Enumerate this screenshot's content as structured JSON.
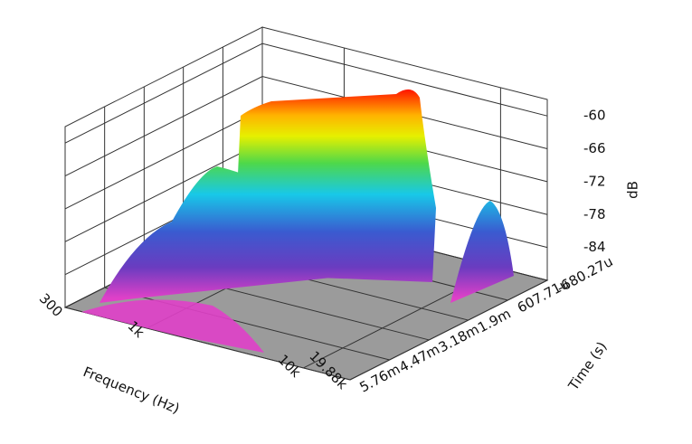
{
  "chart_data": {
    "type": "waterfall3d",
    "xlabel": "Frequency (Hz)",
    "ylabel": "Time (s)",
    "zlabel": "dB",
    "xscale": "log",
    "xlim": [
      300,
      19880
    ],
    "xticks": [
      300,
      {
        "value": 1000,
        "label": "1k"
      },
      {
        "value": 10000,
        "label": "10k"
      },
      {
        "value": 19880,
        "label": "19.88k"
      }
    ],
    "ylim": [
      -0.00068027,
      0.00576
    ],
    "yticks": [
      {
        "value": -0.00068027,
        "label": "-680.27u"
      },
      {
        "value": 0.00060771,
        "label": "607.71u"
      },
      {
        "value": 0.0019,
        "label": "1.9m"
      },
      {
        "value": 0.00318,
        "label": "3.18m"
      },
      {
        "value": 0.00447,
        "label": "4.47m"
      },
      {
        "value": 0.00576,
        "label": "5.76m"
      }
    ],
    "zlim": [
      -90,
      -57
    ],
    "zticks": [
      -60,
      -66,
      -72,
      -78,
      -84
    ],
    "floor_color": "#9b9b9b"
  }
}
